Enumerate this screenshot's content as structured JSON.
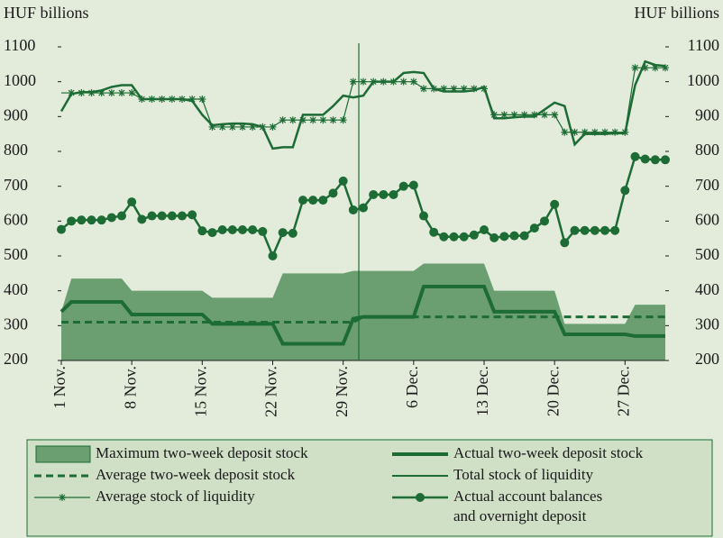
{
  "chart_data": {
    "type": "line",
    "ylabel": "HUF billions",
    "y2label": "HUF billions",
    "categories": [
      "1 Nov.",
      null,
      null,
      null,
      null,
      null,
      null,
      "8 Nov.",
      null,
      null,
      null,
      null,
      null,
      null,
      "15 Nov.",
      null,
      null,
      null,
      null,
      null,
      null,
      "22 Nov.",
      null,
      null,
      null,
      null,
      null,
      null,
      "29 Nov.",
      null,
      null,
      null,
      null,
      null,
      null,
      "6 Dec.",
      null,
      null,
      null,
      null,
      null,
      null,
      "13 Dec.",
      null,
      null,
      null,
      null,
      null,
      null,
      "20 Dec.",
      null,
      null,
      null,
      null,
      null,
      null,
      "27 Dec.",
      null,
      null,
      null,
      null
    ],
    "ylim": [
      200,
      1100
    ],
    "yticks": [
      200,
      300,
      400,
      500,
      600,
      700,
      800,
      900,
      1000,
      1100
    ],
    "y2lim": [
      200,
      1100
    ],
    "y2ticks": [
      200,
      300,
      400,
      500,
      600,
      700,
      800,
      900,
      1000,
      1100
    ],
    "series": [
      {
        "name": "Maximum two-week deposit stock",
        "color": "#6b9e70",
        "style": "area",
        "values": [
          340,
          435,
          435,
          435,
          435,
          435,
          435,
          400,
          400,
          400,
          400,
          400,
          400,
          400,
          400,
          380,
          380,
          380,
          380,
          380,
          380,
          380,
          450,
          450,
          450,
          450,
          450,
          450,
          450,
          457,
          457,
          457,
          457,
          457,
          457,
          457,
          478,
          478,
          478,
          478,
          478,
          478,
          478,
          400,
          400,
          400,
          400,
          400,
          400,
          400,
          305,
          305,
          305,
          305,
          305,
          305,
          305,
          360,
          360,
          360,
          360
        ]
      },
      {
        "name": "Actual two-week deposit stock",
        "color": "#1d6b35",
        "style": "thick",
        "values": [
          340,
          368,
          368,
          368,
          368,
          368,
          368,
          332,
          332,
          332,
          332,
          332,
          332,
          332,
          332,
          305,
          305,
          305,
          305,
          305,
          305,
          305,
          248,
          248,
          248,
          248,
          248,
          248,
          248,
          320,
          325,
          325,
          325,
          325,
          325,
          325,
          412,
          412,
          412,
          412,
          412,
          412,
          412,
          340,
          340,
          340,
          340,
          340,
          340,
          340,
          275,
          275,
          275,
          275,
          275,
          275,
          275,
          270,
          270,
          270,
          270
        ]
      },
      {
        "name": "Average two-week deposit stock",
        "color": "#1d6b35",
        "style": "dashed",
        "values": [
          310,
          310,
          310,
          310,
          310,
          310,
          310,
          310,
          310,
          310,
          310,
          310,
          310,
          310,
          310,
          310,
          310,
          310,
          310,
          310,
          310,
          310,
          310,
          310,
          310,
          310,
          310,
          310,
          310,
          310,
          325,
          325,
          325,
          325,
          325,
          325,
          325,
          325,
          325,
          325,
          325,
          325,
          325,
          325,
          325,
          325,
          325,
          325,
          325,
          325,
          325,
          325,
          325,
          325,
          325,
          325,
          325,
          325,
          325,
          325,
          325
        ]
      },
      {
        "name": "Total stock of liquidity",
        "color": "#1d6b35",
        "style": "thin",
        "values": [
          915,
          965,
          970,
          970,
          975,
          985,
          990,
          990,
          950,
          950,
          950,
          950,
          950,
          945,
          905,
          875,
          878,
          880,
          880,
          878,
          870,
          808,
          812,
          812,
          905,
          905,
          905,
          930,
          960,
          955,
          960,
          1000,
          1000,
          1000,
          1025,
          1028,
          1025,
          980,
          972,
          972,
          972,
          975,
          985,
          895,
          895,
          898,
          900,
          900,
          920,
          940,
          930,
          820,
          850,
          850,
          850,
          852,
          852,
          990,
          1058,
          1048,
          1045
        ]
      },
      {
        "name": "Average stock of liquidity",
        "color": "#1d6b35",
        "style": "asterisk",
        "values": [
          968,
          968,
          968,
          968,
          968,
          968,
          968,
          968,
          950,
          950,
          950,
          950,
          950,
          950,
          950,
          870,
          870,
          870,
          870,
          870,
          870,
          870,
          890,
          890,
          890,
          890,
          890,
          890,
          890,
          1000,
          1000,
          1000,
          1000,
          1000,
          1000,
          1000,
          980,
          980,
          980,
          980,
          980,
          980,
          980,
          905,
          905,
          905,
          905,
          905,
          905,
          905,
          855,
          855,
          855,
          855,
          855,
          855,
          855,
          1040,
          1040,
          1040,
          1040
        ]
      },
      {
        "name": "Actual account balances and overnight deposit",
        "color": "#1d6b35",
        "style": "circle",
        "values": [
          576,
          600,
          603,
          603,
          603,
          610,
          615,
          655,
          605,
          615,
          615,
          615,
          615,
          618,
          572,
          567,
          575,
          575,
          575,
          575,
          570,
          500,
          567,
          565,
          660,
          660,
          660,
          680,
          715,
          632,
          638,
          676,
          676,
          676,
          700,
          703,
          615,
          568,
          555,
          555,
          555,
          560,
          575,
          552,
          556,
          558,
          558,
          580,
          600,
          648,
          538,
          573,
          573,
          573,
          573,
          573,
          688,
          785,
          778,
          776,
          776
        ]
      }
    ]
  }
}
